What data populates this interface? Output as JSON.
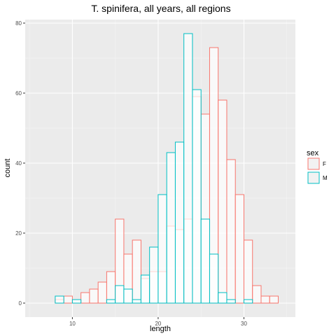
{
  "chart_data": {
    "type": "histogram",
    "title": "T. spinifera, all years, all regions",
    "xlabel": "length",
    "ylabel": "count",
    "xlim": [
      4.5,
      36.0
    ],
    "ylim": [
      -4,
      81
    ],
    "x_ticks": [
      10,
      20,
      30
    ],
    "y_ticks": [
      0,
      20,
      40,
      60,
      80
    ],
    "bin_width": 1,
    "bin_starts": [
      6,
      7,
      8,
      9,
      10,
      11,
      12,
      13,
      14,
      15,
      16,
      17,
      18,
      19,
      20,
      21,
      22,
      23,
      24,
      25,
      26,
      27,
      28,
      29,
      30,
      31,
      32,
      33,
      34
    ],
    "legend": {
      "title": "sex",
      "position": "right"
    },
    "series": [
      {
        "name": "F",
        "color": "#F8766D",
        "values": [
          0,
          0,
          1,
          2,
          1,
          3,
          4,
          6,
          9,
          24,
          14,
          18,
          7,
          9,
          9,
          22,
          21,
          24,
          59,
          54,
          73,
          58,
          41,
          31,
          18,
          5,
          2,
          2,
          0
        ]
      },
      {
        "name": "M",
        "color": "#00BFC4",
        "values": [
          0,
          0,
          2,
          0,
          1,
          0,
          0,
          0,
          1,
          5,
          4,
          1,
          8,
          16,
          31,
          43,
          46,
          77,
          61,
          24,
          14,
          3,
          1,
          0,
          1,
          0,
          0,
          0,
          0
        ]
      }
    ],
    "grid": true
  }
}
